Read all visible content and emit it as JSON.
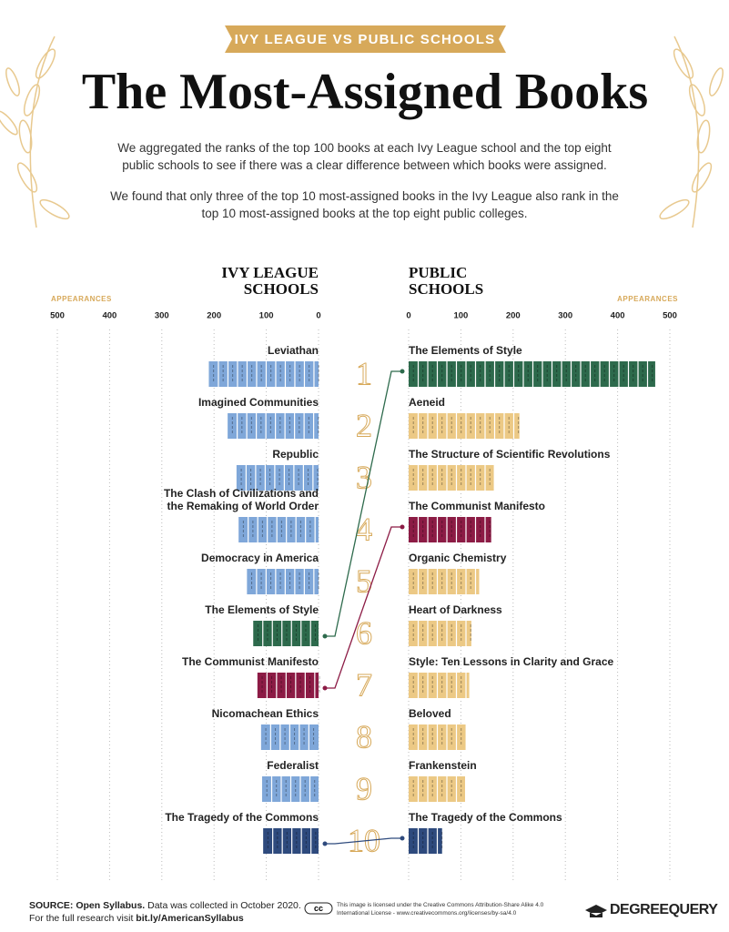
{
  "header": {
    "banner": "IVY LEAGUE VS PUBLIC SCHOOLS",
    "title": "The Most-Assigned Books",
    "paragraphs": [
      "We aggregated the ranks of the top 100 books at each Ivy League school and the top eight public schools to see if there was a clear difference between which books were assigned.",
      "We found that only three of the top 10 most-assigned books in the Ivy League also rank in the top 10 most-assigned books at the top eight public colleges."
    ]
  },
  "ranks": [
    1,
    2,
    3,
    4,
    5,
    6,
    7,
    8,
    9,
    10
  ],
  "chart_data": [
    {
      "type": "bar",
      "orientation": "horizontal",
      "x_inverted": true,
      "title": "IVY LEAGUE SCHOOLS",
      "xlabel": "APPEARANCES",
      "categories": [
        "Leviathan",
        "Imagined Communities",
        "Republic",
        "The Clash of Civilizations and the Remaking of World Order",
        "Democracy in America",
        "The Elements of Style",
        "The Communist Manifesto",
        "Nicomachean Ethics",
        "Federalist",
        "The Tragedy of the Commons"
      ],
      "values": [
        210,
        174,
        157,
        153,
        137,
        125,
        117,
        110,
        108,
        106
      ],
      "colors": [
        "#7fa7d9",
        "#7fa7d9",
        "#7fa7d9",
        "#7fa7d9",
        "#7fa7d9",
        "#2d6a4c",
        "#8c1b45",
        "#7fa7d9",
        "#7fa7d9",
        "#2e4a7d"
      ],
      "xlim": [
        0,
        500
      ],
      "xticks": [
        0,
        100,
        200,
        300,
        400,
        500
      ],
      "grid": true
    },
    {
      "type": "bar",
      "orientation": "horizontal",
      "x_inverted": false,
      "title": "PUBLIC SCHOOLS",
      "xlabel": "APPEARANCES",
      "categories": [
        "The Elements of Style",
        "Aeneid",
        "The Structure of Scientific Revolutions",
        "The Communist Manifesto",
        "Organic Chemistry",
        "Heart of Darkness",
        "Style: Ten Lessons in Clarity and Grace",
        "Beloved",
        "Frankenstein",
        "The Tragedy of the Commons"
      ],
      "values": [
        472,
        212,
        163,
        158,
        135,
        120,
        116,
        109,
        108,
        64
      ],
      "colors": [
        "#2d6a4c",
        "#ecc985",
        "#ecc985",
        "#8c1b45",
        "#ecc985",
        "#ecc985",
        "#ecc985",
        "#ecc985",
        "#ecc985",
        "#2e4a7d"
      ],
      "xlim": [
        0,
        500
      ],
      "xticks": [
        0,
        100,
        200,
        300,
        400,
        500
      ],
      "grid": true
    }
  ],
  "footer": {
    "source_label": "SOURCE:",
    "source": "Open Syllabus.",
    "note": "Data was collected in October 2020.",
    "research": "For the full research visit",
    "link": "bit.ly/AmericanSyllabus",
    "cc": "cc",
    "license": "This image is licensed under the Creative Commons Attribution-Share Alike 4.0 International License - www.creativecommons.org/licenses/by-sa/4.0",
    "logo": "DEGREEQUERY"
  }
}
